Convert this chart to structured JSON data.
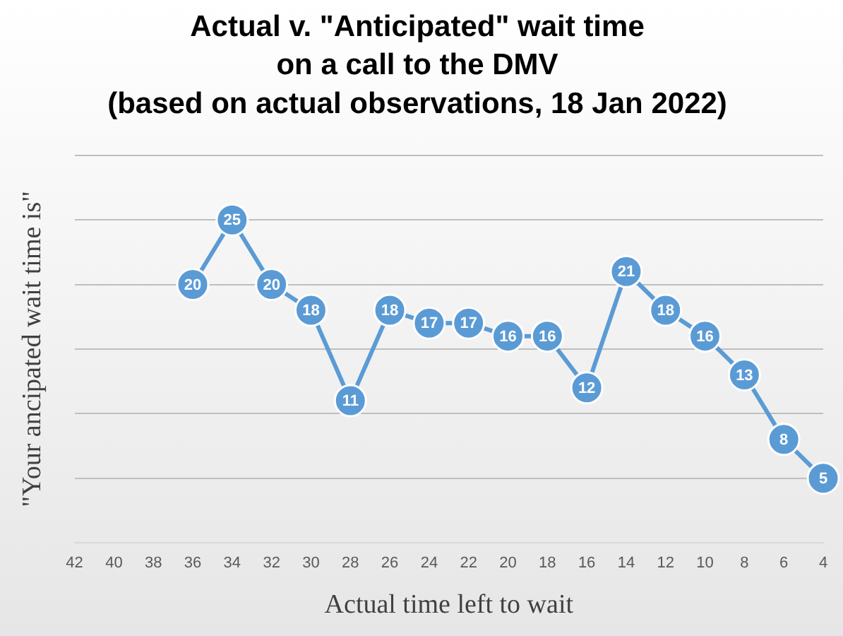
{
  "chart_data": {
    "type": "line",
    "title": "Actual v. \"Anticipated\" wait time\non a call to the DMV\n(based on actual observations, 18 Jan 2022)",
    "xlabel": "Actual time left to wait",
    "ylabel": "\"Your ancipated wait time is\"",
    "categories": [
      "42",
      "40",
      "38",
      "36",
      "34",
      "32",
      "30",
      "28",
      "26",
      "24",
      "22",
      "20",
      "18",
      "16",
      "14",
      "12",
      "10",
      "8",
      "6",
      "4"
    ],
    "series": [
      {
        "color": "#5b9bd5",
        "values": [
          null,
          null,
          null,
          20,
          25,
          20,
          18,
          11,
          18,
          17,
          17,
          16,
          16,
          12,
          21,
          18,
          16,
          13,
          8,
          5
        ]
      }
    ],
    "ylim": [
      0,
      30
    ],
    "yticks": [
      {
        "value": 0,
        "label": null
      },
      {
        "value": 5,
        "label": null
      },
      {
        "value": 10,
        "label": null
      },
      {
        "value": 15,
        "label": null
      },
      {
        "value": 20,
        "label": null
      },
      {
        "value": 25,
        "label": null
      },
      {
        "value": 30,
        "label": null
      }
    ],
    "tick_labels": "x",
    "grid": "y",
    "marker": "circle",
    "line_style": "solid",
    "data_labels": true,
    "legend": false
  }
}
